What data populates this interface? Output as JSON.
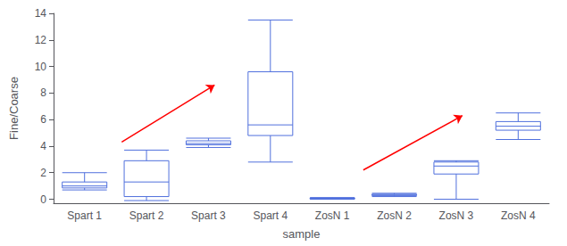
{
  "chart_data": {
    "type": "boxplot",
    "xlabel": "sample",
    "ylabel": "Fine/Coarse",
    "categories": [
      "Spart 1",
      "Spart 2",
      "Spart 3",
      "Spart 4",
      "ZosN 1",
      "ZosN 2",
      "ZosN 3",
      "ZosN 4"
    ],
    "values": [
      {
        "whislo": 0.7,
        "q1": 0.85,
        "med": 1.0,
        "q3": 1.3,
        "whishi": 2.0
      },
      {
        "whislo": -0.1,
        "q1": 0.2,
        "med": 1.3,
        "q3": 2.9,
        "whishi": 3.7
      },
      {
        "whislo": 3.9,
        "q1": 4.1,
        "med": 4.2,
        "q3": 4.4,
        "whishi": 4.6
      },
      {
        "whislo": 2.8,
        "q1": 4.8,
        "med": 5.6,
        "q3": 9.6,
        "whishi": 13.5
      },
      {
        "whislo": 0.0,
        "q1": 0.02,
        "med": 0.07,
        "q3": 0.1,
        "whishi": 0.12
      },
      {
        "whislo": 0.2,
        "q1": 0.28,
        "med": 0.32,
        "q3": 0.38,
        "whishi": 0.45
      },
      {
        "whislo": 0.0,
        "q1": 1.9,
        "med": 2.5,
        "q3": 2.8,
        "whishi": 2.9
      },
      {
        "whislo": 4.5,
        "q1": 5.2,
        "med": 5.5,
        "q3": 5.85,
        "whishi": 6.5
      }
    ],
    "ylim": [
      -0.3,
      14
    ],
    "yticks": [
      0,
      2,
      4,
      6,
      8,
      10,
      12,
      14
    ],
    "grid": false,
    "arrows": {
      "color": "red",
      "values": [
        {
          "start": [
            1.6,
            4.3
          ],
          "end": [
            3.1,
            8.6
          ]
        },
        {
          "start": [
            5.5,
            2.2
          ],
          "end": [
            7.1,
            6.3
          ]
        }
      ]
    }
  }
}
